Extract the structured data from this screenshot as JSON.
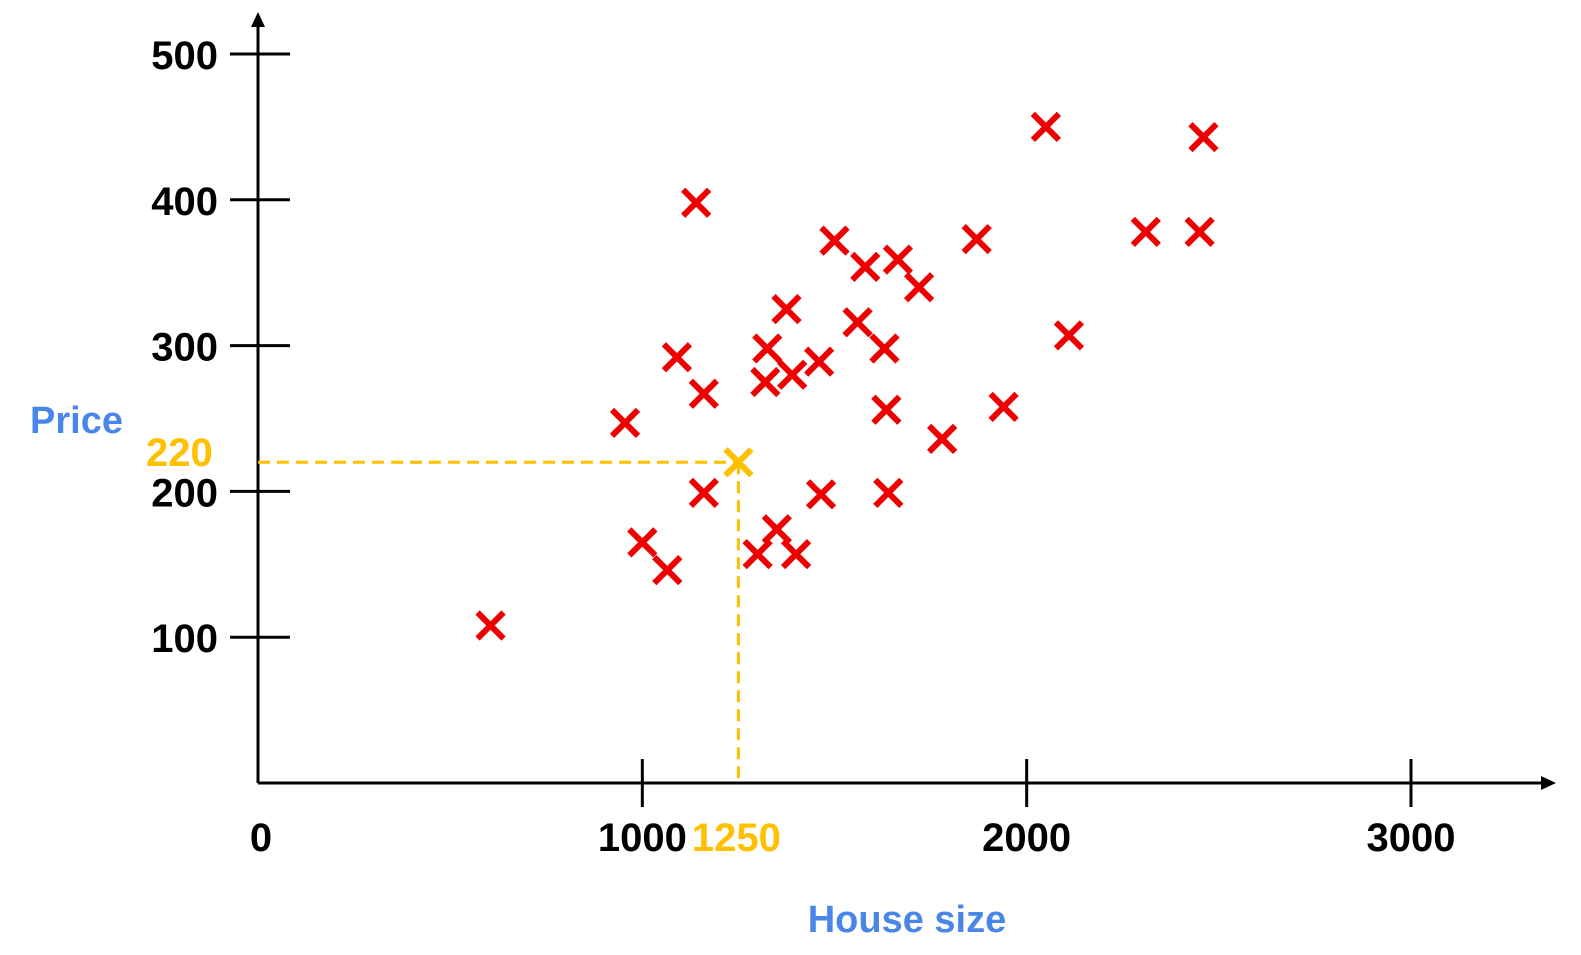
{
  "chart_data": {
    "type": "scatter",
    "title": "",
    "xlabel": "House size",
    "ylabel": "Price",
    "xlim": [
      0,
      3400
    ],
    "ylim": [
      0,
      525
    ],
    "x_ticks": [
      0,
      1000,
      2000,
      3000
    ],
    "x_tick_labels": [
      "0",
      "1000",
      "2000",
      "3000"
    ],
    "y_ticks": [
      100,
      200,
      300,
      400,
      500
    ],
    "y_tick_labels": [
      "100",
      "200",
      "300",
      "400",
      "500"
    ],
    "grid": false,
    "colors": {
      "axis": "#000000",
      "points": "#ee0000",
      "highlight": "#ffc000",
      "axis_label": "#4a86e8"
    },
    "series": [
      {
        "values": [
          [
            605,
            108
          ],
          [
            955,
            247
          ],
          [
            1000,
            165
          ],
          [
            1065,
            146
          ],
          [
            1090,
            292
          ],
          [
            1140,
            398
          ],
          [
            1160,
            267
          ],
          [
            1160,
            199
          ],
          [
            1300,
            157
          ],
          [
            1320,
            275
          ],
          [
            1325,
            298
          ],
          [
            1350,
            174
          ],
          [
            1375,
            325
          ],
          [
            1390,
            280
          ],
          [
            1400,
            157
          ],
          [
            1460,
            289
          ],
          [
            1465,
            198
          ],
          [
            1500,
            372
          ],
          [
            1560,
            316
          ],
          [
            1580,
            354
          ],
          [
            1630,
            298
          ],
          [
            1635,
            256
          ],
          [
            1640,
            199
          ],
          [
            1665,
            359
          ],
          [
            1720,
            340
          ],
          [
            1780,
            236
          ],
          [
            1870,
            373
          ],
          [
            1940,
            258
          ],
          [
            2050,
            450
          ],
          [
            2110,
            307
          ],
          [
            2310,
            378
          ],
          [
            2450,
            378
          ],
          [
            2460,
            443
          ]
        ]
      }
    ],
    "highlight": {
      "x": 1250,
      "y": 220,
      "x_label": "1250",
      "y_label": "220"
    }
  }
}
